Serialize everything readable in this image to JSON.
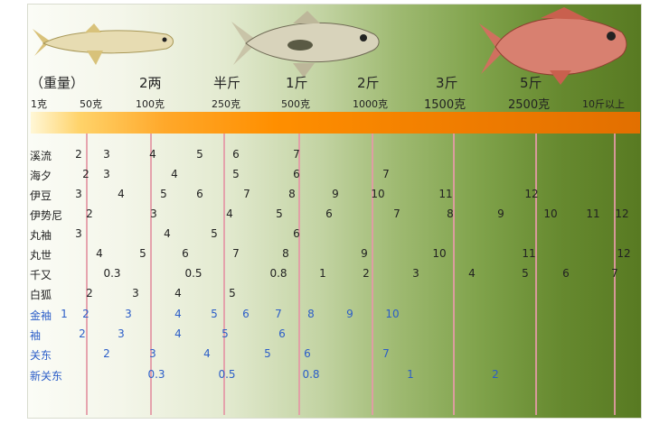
{
  "header": {
    "weight_labels": [
      "（重量）",
      "2两",
      "半斤",
      "1斤",
      "2斤",
      "3斤",
      "5斤"
    ],
    "gram_labels": [
      "1克",
      "50克",
      "100克",
      "250克",
      "500克",
      "1000克",
      "1500克",
      "2500克",
      "10斤以上"
    ]
  },
  "icons": [
    "slim-fish-illustration",
    "carp-fish-illustration",
    "red-snapper-illustration"
  ],
  "colors": {
    "scale_bar": "#ff8f00",
    "grid_line": "#e39aa6",
    "blue_rows": "#2c5ec8",
    "background_dark": "#587a22"
  },
  "rows": [
    {
      "label": "溪流",
      "color": "black",
      "values": [
        "2",
        "3",
        "4",
        "5",
        "6",
        "7"
      ]
    },
    {
      "label": "海夕",
      "color": "black",
      "values": [
        "2",
        "3",
        "4",
        "5",
        "6",
        "7"
      ]
    },
    {
      "label": "伊豆",
      "color": "black",
      "values": [
        "3",
        "4",
        "5",
        "6",
        "7",
        "8",
        "9",
        "10",
        "11",
        "12"
      ]
    },
    {
      "label": "伊势尼",
      "color": "black",
      "values": [
        "2",
        "3",
        "4",
        "5",
        "6",
        "7",
        "8",
        "9",
        "10",
        "11",
        "12"
      ]
    },
    {
      "label": "丸袖",
      "color": "black",
      "values": [
        "3",
        "4",
        "5",
        "6"
      ]
    },
    {
      "label": "丸世",
      "color": "black",
      "values": [
        "4",
        "5",
        "6",
        "7",
        "8",
        "9",
        "10",
        "11",
        "12"
      ]
    },
    {
      "label": "千又",
      "color": "black",
      "values": [
        "0.3",
        "0.5",
        "0.8",
        "1",
        "2",
        "3",
        "4",
        "5",
        "6",
        "7"
      ]
    },
    {
      "label": "白狐",
      "color": "black",
      "values": [
        "2",
        "3",
        "4",
        "5"
      ]
    },
    {
      "label": "金袖",
      "color": "blue",
      "values": [
        "1",
        "2",
        "3",
        "4",
        "5",
        "6",
        "7",
        "8",
        "9",
        "10"
      ]
    },
    {
      "label": "袖",
      "color": "blue",
      "values": [
        "2",
        "3",
        "4",
        "5",
        "6"
      ]
    },
    {
      "label": "关东",
      "color": "blue",
      "values": [
        "2",
        "3",
        "4",
        "5",
        "6",
        "7"
      ]
    },
    {
      "label": "新关东",
      "color": "blue",
      "values": [
        "0.3",
        "0.5",
        "0.8",
        "1",
        "2"
      ]
    }
  ]
}
